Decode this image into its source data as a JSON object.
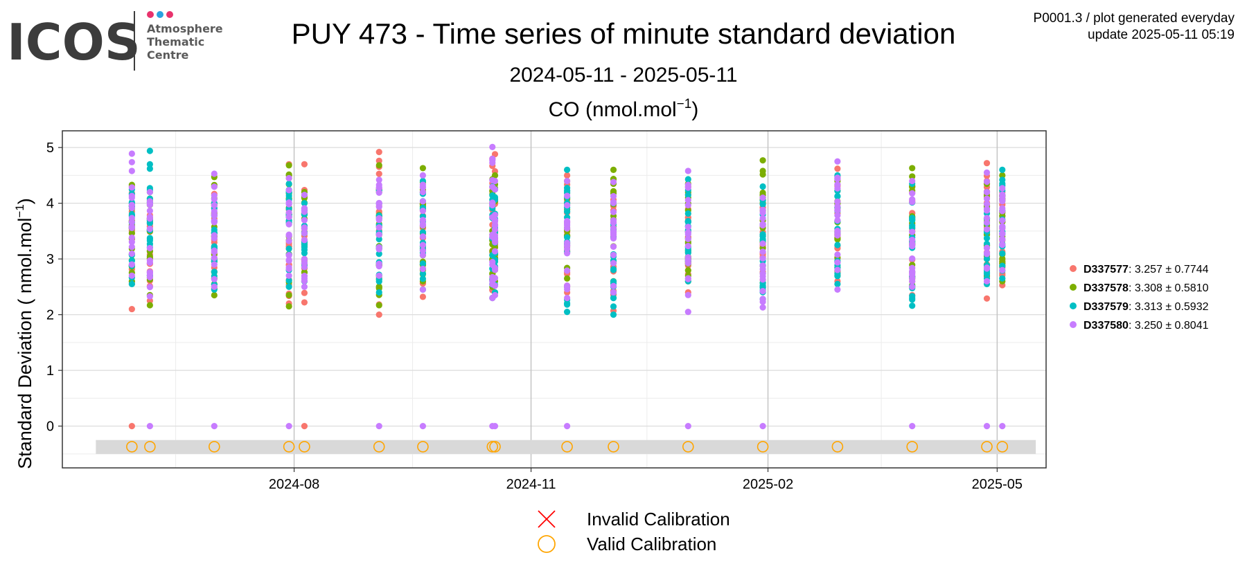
{
  "header": {
    "logo_text": "ICOS",
    "logo_sub1": "Atmosphere",
    "logo_sub2": "Thematic",
    "logo_sub3": "Centre",
    "title": "PUY 473 - Time series of minute standard deviation",
    "subtitle": "2024-05-11 - 2025-05-11",
    "info_line1": "P0001.3 / plot generated everyday",
    "info_line2": "update  2025-05-11 05:19",
    "logo_dot_colors": [
      "#e8336d",
      "#2aa3e0",
      "#e8336d"
    ]
  },
  "chart_data": {
    "type": "scatter",
    "title": "CO (nmol.mol",
    "title_sup": "−1",
    "title_tail": ")",
    "ylabel": "Standard Deviation ( nmol.mol",
    "ylabel_sup": "−1",
    "ylabel_tail": ")",
    "ylim": [
      -0.75,
      5.3
    ],
    "xlim": [
      "2024-05-03",
      "2025-05-20"
    ],
    "yticks": [
      0,
      1,
      2,
      3,
      4,
      5
    ],
    "xticks": [
      {
        "date": "2024-08-01",
        "label": "2024-08"
      },
      {
        "date": "2024-11-01",
        "label": "2024-11"
      },
      {
        "date": "2025-02-01",
        "label": "2025-02"
      },
      {
        "date": "2025-05-01",
        "label": "2025-05"
      }
    ],
    "grid": true,
    "legend_position": "right",
    "calibration_dates": [
      "2024-05-30",
      "2024-06-06",
      "2024-07-01",
      "2024-07-30",
      "2024-08-05",
      "2024-09-03",
      "2024-09-20",
      "2024-10-17",
      "2024-10-18",
      "2024-11-15",
      "2024-12-03",
      "2025-01-01",
      "2025-01-30",
      "2025-02-28",
      "2025-03-29",
      "2025-04-27",
      "2025-05-03"
    ],
    "calibration_band": [
      -0.5,
      -0.25
    ],
    "series": [
      {
        "name": "D337577",
        "label": ": 3.257 ± 0.7744",
        "color": "#f8766d",
        "points": [
          {
            "date": "2024-05-30",
            "min": 2.1,
            "max": 4.3,
            "zero": true
          },
          {
            "date": "2024-06-06",
            "min": 2.25,
            "max": 4.0,
            "zero": false
          },
          {
            "date": "2024-07-01",
            "min": 2.5,
            "max": 4.3,
            "zero": false
          },
          {
            "date": "2024-07-30",
            "min": 2.2,
            "max": 4.7,
            "zero": false
          },
          {
            "date": "2024-08-05",
            "min": 2.22,
            "max": 4.7,
            "zero": true
          },
          {
            "date": "2024-09-03",
            "min": 2.0,
            "max": 4.92,
            "zero": false
          },
          {
            "date": "2024-09-20",
            "min": 2.32,
            "max": 4.2,
            "zero": false
          },
          {
            "date": "2024-10-17",
            "min": 2.3,
            "max": 4.8,
            "zero": false
          },
          {
            "date": "2024-10-18",
            "min": 2.4,
            "max": 4.88,
            "zero": false
          },
          {
            "date": "2024-11-15",
            "min": 2.4,
            "max": 4.5,
            "zero": false
          },
          {
            "date": "2024-12-03",
            "min": 2.07,
            "max": 4.2,
            "zero": false
          },
          {
            "date": "2025-01-01",
            "min": 2.4,
            "max": 4.3,
            "zero": false
          },
          {
            "date": "2025-01-30",
            "min": 2.5,
            "max": 4.1,
            "zero": false
          },
          {
            "date": "2025-02-28",
            "min": 2.6,
            "max": 4.62,
            "zero": false
          },
          {
            "date": "2025-03-29",
            "min": 2.35,
            "max": 4.3,
            "zero": false
          },
          {
            "date": "2025-04-27",
            "min": 2.29,
            "max": 4.72,
            "zero": false
          },
          {
            "date": "2025-05-03",
            "min": 2.53,
            "max": 4.2,
            "zero": false
          }
        ]
      },
      {
        "name": "D337578",
        "label": ": 3.308 ± 0.5810",
        "color": "#7cae00",
        "points": [
          {
            "date": "2024-05-30",
            "min": 2.6,
            "max": 4.33,
            "zero": false
          },
          {
            "date": "2024-06-06",
            "min": 2.17,
            "max": 4.2,
            "zero": false
          },
          {
            "date": "2024-07-01",
            "min": 2.35,
            "max": 4.47,
            "zero": false
          },
          {
            "date": "2024-07-30",
            "min": 2.15,
            "max": 4.68,
            "zero": false
          },
          {
            "date": "2024-08-05",
            "min": 2.6,
            "max": 4.2,
            "zero": false
          },
          {
            "date": "2024-09-03",
            "min": 2.17,
            "max": 4.68,
            "zero": false
          },
          {
            "date": "2024-09-20",
            "min": 2.6,
            "max": 4.63,
            "zero": false
          },
          {
            "date": "2024-10-17",
            "min": 2.5,
            "max": 4.43,
            "zero": false
          },
          {
            "date": "2024-10-18",
            "min": 2.6,
            "max": 4.5,
            "zero": false
          },
          {
            "date": "2024-11-15",
            "min": 2.5,
            "max": 4.4,
            "zero": false
          },
          {
            "date": "2024-12-03",
            "min": 2.6,
            "max": 4.6,
            "zero": false
          },
          {
            "date": "2025-01-01",
            "min": 2.6,
            "max": 4.35,
            "zero": false
          },
          {
            "date": "2025-01-30",
            "min": 2.57,
            "max": 4.77,
            "zero": false
          },
          {
            "date": "2025-02-28",
            "min": 2.7,
            "max": 4.4,
            "zero": false
          },
          {
            "date": "2025-03-29",
            "min": 2.53,
            "max": 4.63,
            "zero": false
          },
          {
            "date": "2025-04-27",
            "min": 2.7,
            "max": 4.35,
            "zero": false
          },
          {
            "date": "2025-05-03",
            "min": 2.6,
            "max": 4.5,
            "zero": false
          }
        ]
      },
      {
        "name": "D337579",
        "label": ": 3.313 ± 0.5932",
        "color": "#00bfc4",
        "points": [
          {
            "date": "2024-05-30",
            "min": 2.55,
            "max": 4.25,
            "zero": false
          },
          {
            "date": "2024-06-06",
            "min": 2.7,
            "max": 4.94,
            "zero": false
          },
          {
            "date": "2024-07-01",
            "min": 2.45,
            "max": 4.0,
            "zero": false
          },
          {
            "date": "2024-07-30",
            "min": 2.5,
            "max": 4.35,
            "zero": false
          },
          {
            "date": "2024-08-05",
            "min": 2.6,
            "max": 4.0,
            "zero": false
          },
          {
            "date": "2024-09-03",
            "min": 2.4,
            "max": 4.23,
            "zero": false
          },
          {
            "date": "2024-09-20",
            "min": 2.45,
            "max": 4.4,
            "zero": false
          },
          {
            "date": "2024-10-17",
            "min": 2.3,
            "max": 4.3,
            "zero": false
          },
          {
            "date": "2024-10-18",
            "min": 2.4,
            "max": 4.25,
            "zero": false
          },
          {
            "date": "2024-11-15",
            "min": 2.05,
            "max": 4.6,
            "zero": false
          },
          {
            "date": "2024-12-03",
            "min": 2.0,
            "max": 4.0,
            "zero": false
          },
          {
            "date": "2025-01-01",
            "min": 2.6,
            "max": 4.43,
            "zero": false
          },
          {
            "date": "2025-01-30",
            "min": 2.28,
            "max": 4.3,
            "zero": false
          },
          {
            "date": "2025-02-28",
            "min": 2.55,
            "max": 4.5,
            "zero": false
          },
          {
            "date": "2025-03-29",
            "min": 2.16,
            "max": 4.35,
            "zero": false
          },
          {
            "date": "2025-04-27",
            "min": 2.55,
            "max": 4.2,
            "zero": false
          },
          {
            "date": "2025-05-03",
            "min": 2.65,
            "max": 4.6,
            "zero": false
          }
        ]
      },
      {
        "name": "D337580",
        "label": ": 3.250 ± 0.8041",
        "color": "#c77cff",
        "points": [
          {
            "date": "2024-05-30",
            "min": 2.7,
            "max": 4.89,
            "zero": false
          },
          {
            "date": "2024-06-06",
            "min": 2.33,
            "max": 4.2,
            "zero": true
          },
          {
            "date": "2024-07-01",
            "min": 2.5,
            "max": 4.53,
            "zero": true
          },
          {
            "date": "2024-07-30",
            "min": 2.7,
            "max": 4.45,
            "zero": true
          },
          {
            "date": "2024-08-05",
            "min": 2.5,
            "max": 4.15,
            "zero": false
          },
          {
            "date": "2024-09-03",
            "min": 2.7,
            "max": 4.42,
            "zero": true
          },
          {
            "date": "2024-09-20",
            "min": 2.45,
            "max": 4.5,
            "zero": true
          },
          {
            "date": "2024-10-17",
            "min": 2.3,
            "max": 5.01,
            "zero": true
          },
          {
            "date": "2024-10-18",
            "min": 2.35,
            "max": 4.4,
            "zero": true
          },
          {
            "date": "2024-11-15",
            "min": 2.3,
            "max": 4.4,
            "zero": true
          },
          {
            "date": "2024-12-03",
            "min": 2.4,
            "max": 4.38,
            "zero": false
          },
          {
            "date": "2025-01-01",
            "min": 2.05,
            "max": 4.58,
            "zero": true
          },
          {
            "date": "2025-01-30",
            "min": 2.13,
            "max": 4.1,
            "zero": true
          },
          {
            "date": "2025-02-28",
            "min": 2.45,
            "max": 4.75,
            "zero": false
          },
          {
            "date": "2025-03-29",
            "min": 2.5,
            "max": 4.4,
            "zero": true
          },
          {
            "date": "2025-04-27",
            "min": 2.6,
            "max": 4.55,
            "zero": true
          },
          {
            "date": "2025-05-03",
            "min": 2.8,
            "max": 4.27,
            "zero": true
          }
        ]
      }
    ],
    "bottom_legend": [
      {
        "symbol": "cross",
        "label": "Invalid Calibration",
        "color": "#ff0000"
      },
      {
        "symbol": "circle",
        "label": "Valid Calibration",
        "color": "#ffa500"
      }
    ]
  }
}
